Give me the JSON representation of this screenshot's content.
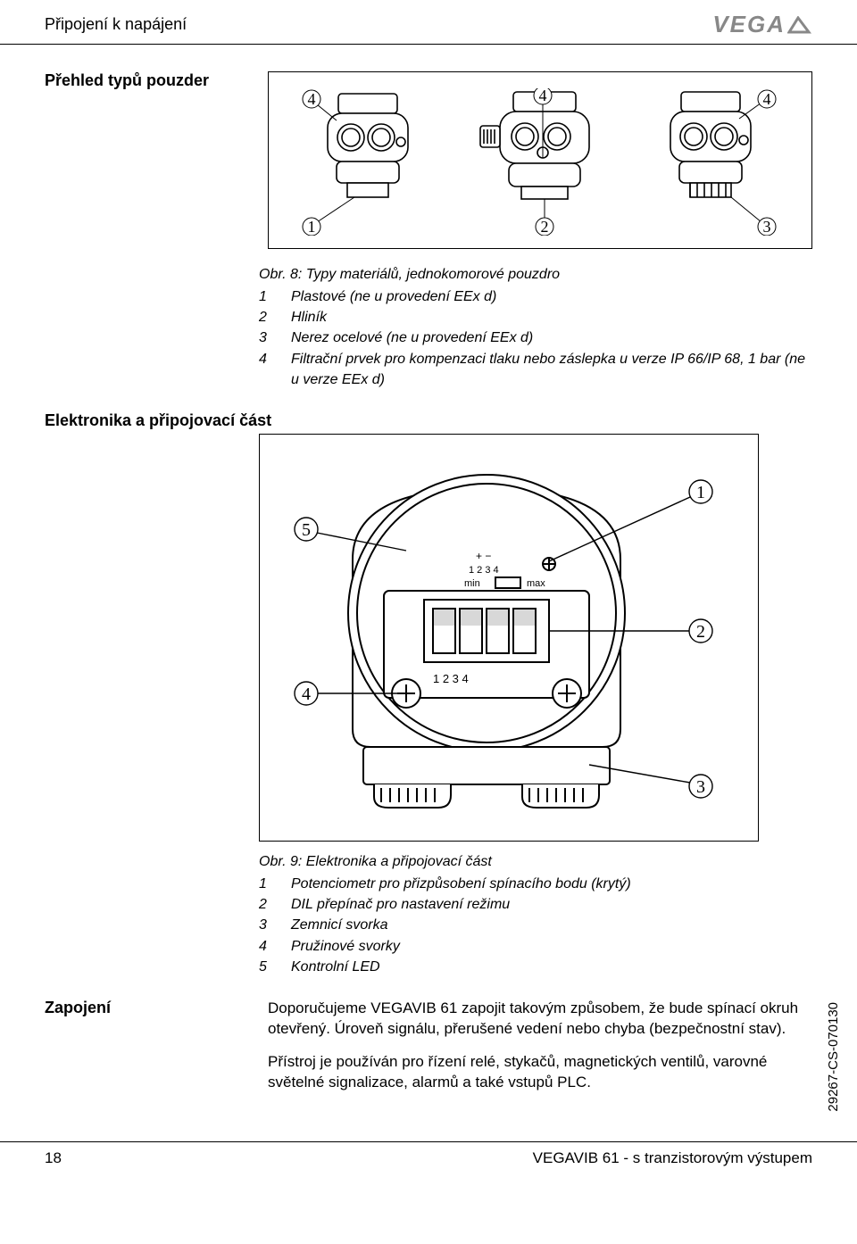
{
  "header": {
    "title": "Připojení k napájení",
    "logo": "VEGA"
  },
  "section1": {
    "label": "Přehled typů pouzder",
    "callouts_top": [
      "4",
      "4",
      "4"
    ],
    "callouts_bot": [
      "1",
      "2",
      "3"
    ],
    "caption_title": "Obr. 8: Typy materiálů, jednokomorové pouzdro",
    "items": [
      {
        "n": "1",
        "t": "Plastové (ne u provedení EEx d)"
      },
      {
        "n": "2",
        "t": "Hliník"
      },
      {
        "n": "3",
        "t": "Nerez ocelové (ne u provedení EEx d)"
      },
      {
        "n": "4",
        "t": "Filtrační prvek pro kompenzaci tlaku nebo záslepka u verze IP 66/IP 68, 1 bar (ne u verze EEx d)"
      }
    ]
  },
  "section2": {
    "label": "Elektronika a připojovací část",
    "callouts": {
      "c1": "1",
      "c2": "2",
      "c3": "3",
      "c4": "4",
      "c5": "5"
    },
    "inner_labels": {
      "min": "min",
      "max": "max",
      "nums": "1 2 3 4",
      "pm": "+    −"
    },
    "caption_title": "Obr. 9: Elektronika a připojovací část",
    "items": [
      {
        "n": "1",
        "t": "Potenciometr pro přizpůsobení spínacího bodu (krytý)"
      },
      {
        "n": "2",
        "t": "DIL přepínač pro nastavení režimu"
      },
      {
        "n": "3",
        "t": "Zemnicí svorka"
      },
      {
        "n": "4",
        "t": "Pružinové svorky"
      },
      {
        "n": "5",
        "t": "Kontrolní LED"
      }
    ]
  },
  "zapojeni": {
    "label": "Zapojení",
    "p1": "Doporučujeme VEGAVIB 61 zapojit takovým způsobem, že bude spínací okruh otevřený. Úroveň signálu, přerušené vedení nebo chyba (bezpečnostní stav).",
    "p2": "Přístroj je používán pro řízení relé, stykačů, magnetických ventilů, varovné světelné signalizace, alarmů a také vstupů PLC."
  },
  "footer": {
    "page": "18",
    "doc": "VEGAVIB 61 - s tranzistorovým výstupem"
  },
  "sidecode": "29267-CS-070130",
  "colors": {
    "stroke": "#000000",
    "fill": "#ffffff",
    "gray": "#bbbbbb"
  }
}
